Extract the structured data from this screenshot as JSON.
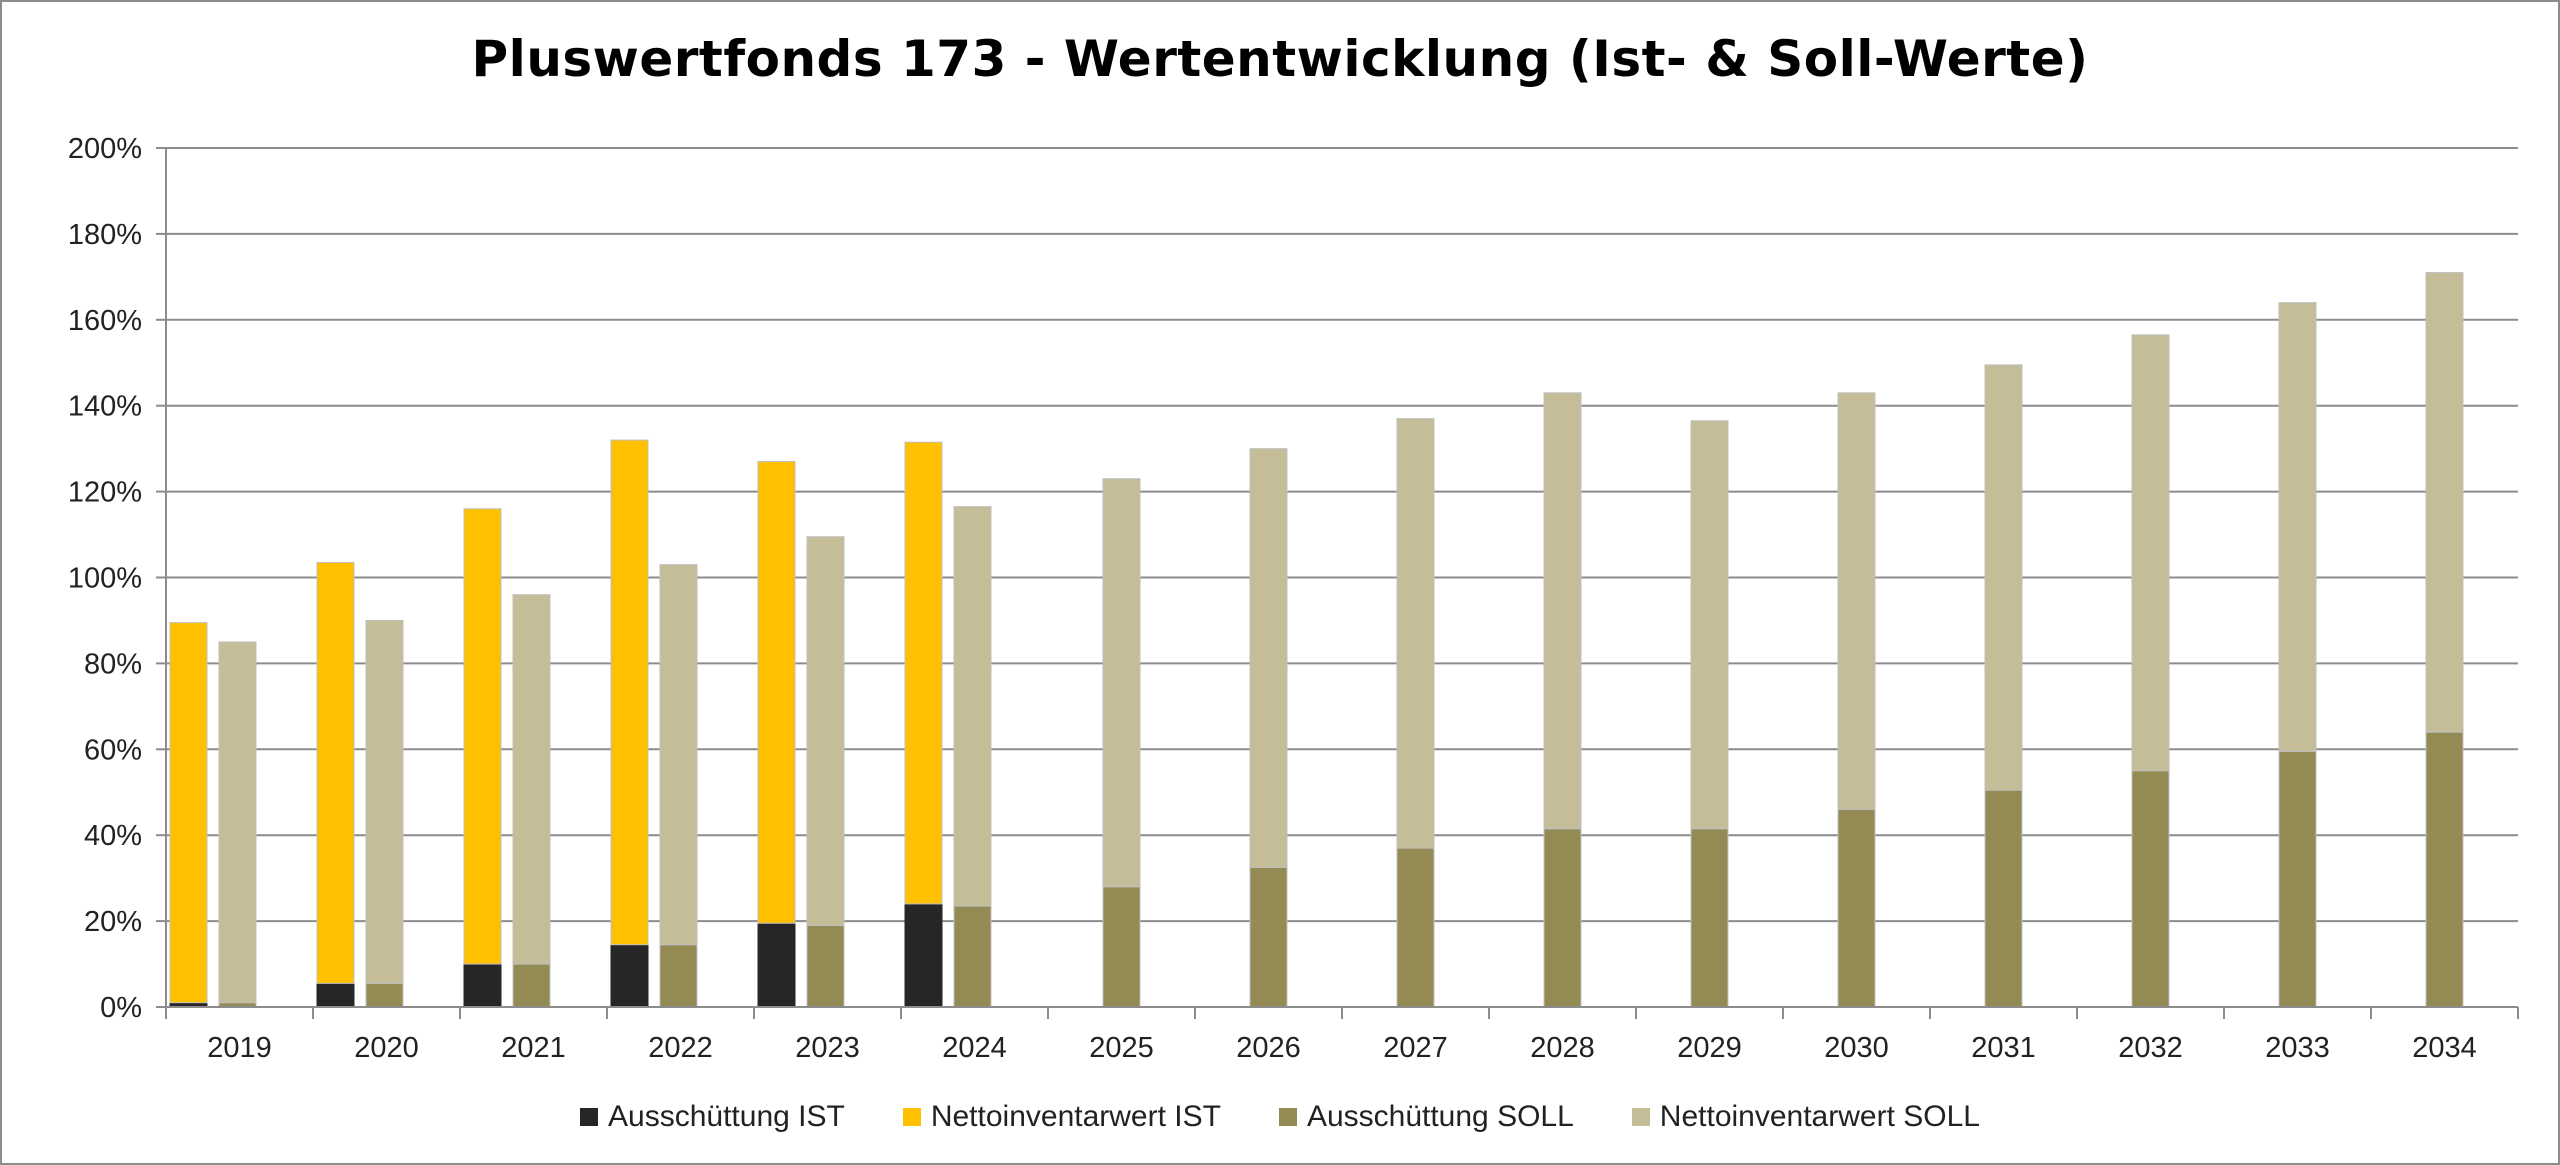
{
  "chart_data": {
    "type": "bar",
    "stacked": true,
    "title": "Pluswertfonds 173 - Wertentwicklung (Ist- & Soll-Werte)",
    "xlabel": "",
    "ylabel": "",
    "ylim": [
      0,
      200
    ],
    "yticks": [
      "0%",
      "20%",
      "40%",
      "60%",
      "80%",
      "100%",
      "120%",
      "140%",
      "160%",
      "180%",
      "200%"
    ],
    "grid": true,
    "legend_position": "bottom",
    "categories": [
      "2019",
      "2020",
      "2021",
      "2022",
      "2023",
      "2024",
      "2025",
      "2026",
      "2027",
      "2028",
      "2029",
      "2030",
      "2031",
      "2032",
      "2033",
      "2034"
    ],
    "groups": [
      {
        "name": "IST",
        "series": [
          {
            "name": "Ausschüttung IST",
            "color": "#262626",
            "values": [
              1,
              5.5,
              10,
              14.5,
              19.5,
              24,
              null,
              null,
              null,
              null,
              null,
              null,
              null,
              null,
              null,
              null
            ]
          },
          {
            "name": "Nettoinventarwert IST",
            "color": "#ffc000",
            "values": [
              88.5,
              98,
              106,
              117.5,
              107.5,
              107.5,
              null,
              null,
              null,
              null,
              null,
              null,
              null,
              null,
              null,
              null
            ]
          }
        ]
      },
      {
        "name": "SOLL",
        "series": [
          {
            "name": "Ausschüttung SOLL",
            "color": "#948b54",
            "values": [
              1,
              5.5,
              10,
              14.5,
              19,
              23.5,
              28,
              32.5,
              37,
              41.5,
              41.5,
              46,
              50.5,
              55,
              59.5,
              64
            ]
          },
          {
            "name": "Nettoinventarwert SOLL",
            "color": "#c4bd97",
            "values": [
              84,
              84.5,
              86,
              88.5,
              90.5,
              93,
              95,
              97.5,
              100,
              101.5,
              95,
              97,
              99,
              101.5,
              104.5,
              107
            ]
          }
        ]
      }
    ],
    "legend": [
      "Ausschüttung IST",
      "Nettoinventarwert IST",
      "Ausschüttung SOLL",
      "Nettoinventarwert SOLL"
    ]
  }
}
